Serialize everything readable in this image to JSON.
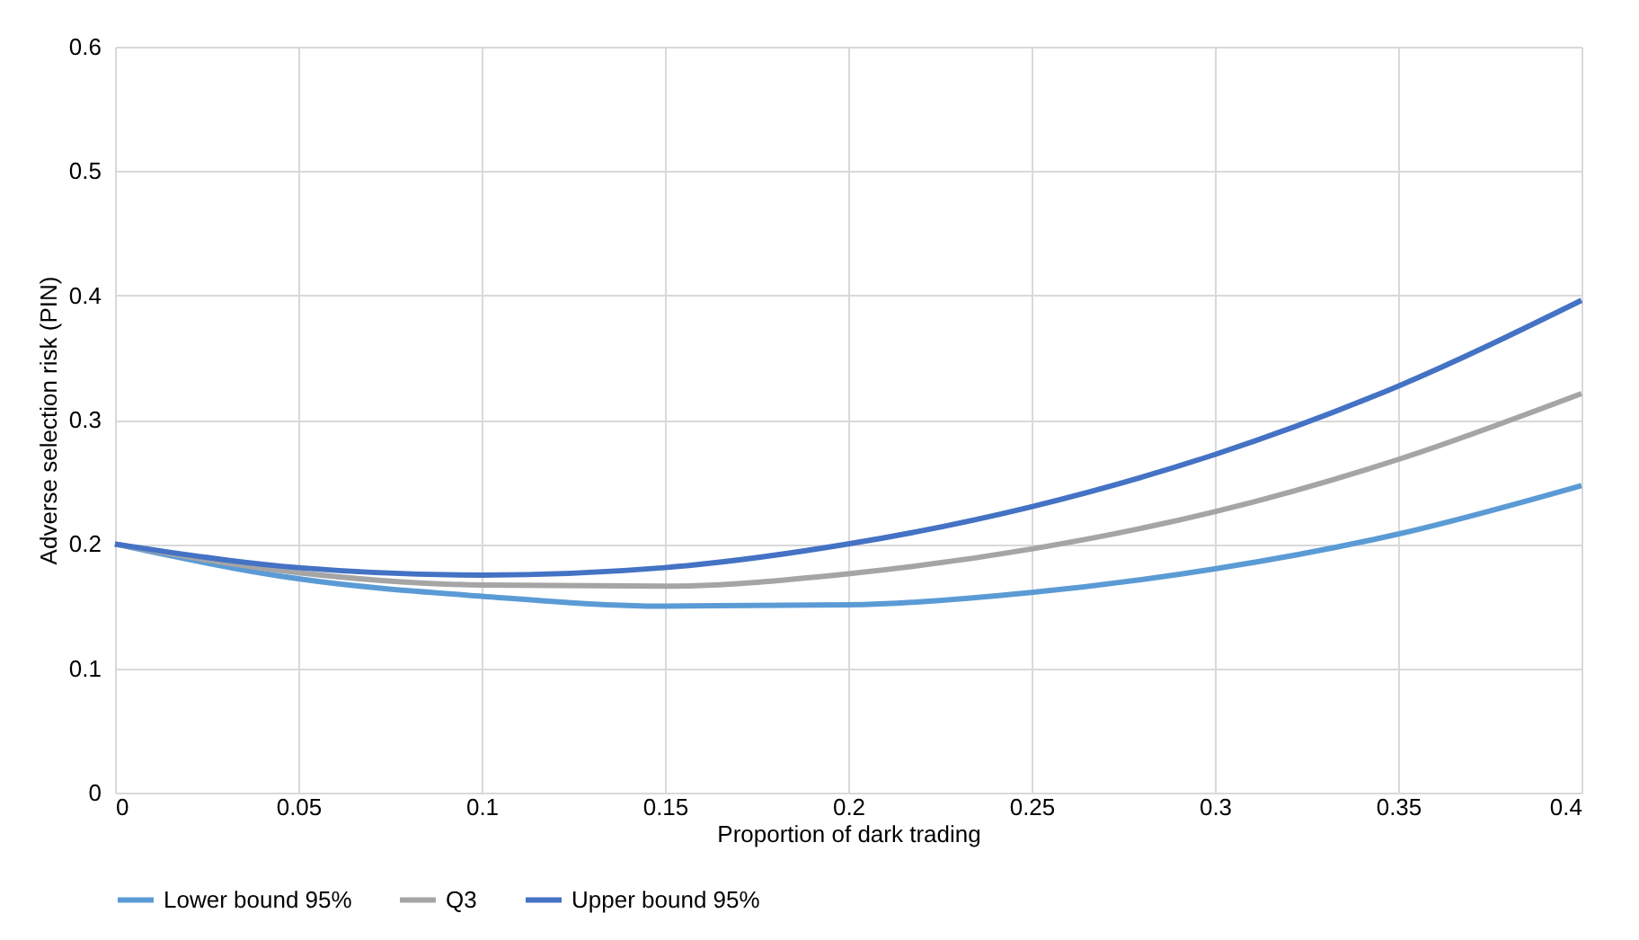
{
  "chart_data": {
    "type": "line",
    "xlabel": "Proportion of dark trading",
    "ylabel": "Adverse selection risk (PIN)",
    "x": [
      0,
      0.05,
      0.1,
      0.15,
      0.2,
      0.25,
      0.3,
      0.35,
      0.4
    ],
    "series": [
      {
        "name": "Lower bound 95%",
        "color": "#5b9bd5",
        "values": [
          0.2,
          0.172,
          0.158,
          0.15,
          0.151,
          0.161,
          0.18,
          0.208,
          0.247
        ]
      },
      {
        "name": "Q3",
        "color": "#a5a5a5",
        "values": [
          0.2,
          0.177,
          0.167,
          0.166,
          0.176,
          0.196,
          0.226,
          0.268,
          0.321
        ]
      },
      {
        "name": "Upper bound 95%",
        "color": "#4472c4",
        "values": [
          0.2,
          0.181,
          0.175,
          0.181,
          0.2,
          0.23,
          0.272,
          0.327,
          0.396
        ]
      }
    ],
    "xlim": [
      0,
      0.4
    ],
    "xticks": [
      0,
      0.05,
      0.1,
      0.15,
      0.2,
      0.25,
      0.3,
      0.35,
      0.4
    ],
    "ylim": [
      0,
      0.6
    ],
    "yticks": [
      0,
      0.1,
      0.2,
      0.3,
      0.4,
      0.5,
      0.6
    ],
    "grid": true,
    "legend": "bottom",
    "marker": "none",
    "line_style": "solid"
  }
}
